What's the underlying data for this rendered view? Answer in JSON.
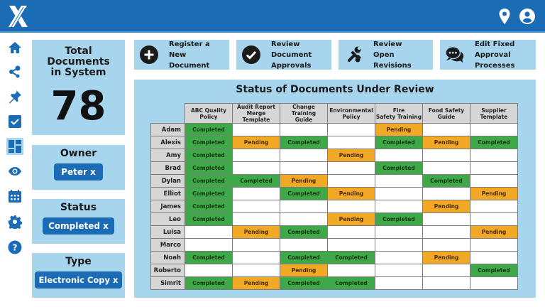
{
  "header": {
    "logo": "x-logo",
    "icons": [
      "location-pin-icon",
      "user-account-icon"
    ],
    "background": "#1b6cb4"
  },
  "sidebar": {
    "items": [
      {
        "name": "home",
        "icon": "home-icon"
      },
      {
        "name": "share",
        "icon": "share-icon"
      },
      {
        "name": "pin",
        "icon": "pin-icon"
      },
      {
        "name": "tasks",
        "icon": "checkbox-icon"
      },
      {
        "name": "dashboard",
        "icon": "dashboard-icon",
        "active": true
      },
      {
        "name": "view",
        "icon": "eye-icon"
      },
      {
        "name": "calendar",
        "icon": "calendar-icon"
      },
      {
        "name": "settings",
        "icon": "gear-icon"
      },
      {
        "name": "help",
        "icon": "help-icon"
      }
    ]
  },
  "stats": {
    "total_label_line1": "Total",
    "total_label_line2": "Documents",
    "total_label_line3": "in System",
    "total_value": "78"
  },
  "filters": {
    "owner": {
      "label": "Owner",
      "chip": "Peter x"
    },
    "status": {
      "label": "Status",
      "chip": "Completed x"
    },
    "type": {
      "label": "Type",
      "chip": "Electronic Copy x"
    }
  },
  "actions": [
    {
      "line1": "Register a",
      "line2": "New Document",
      "icon": "plus-circle-icon"
    },
    {
      "line1": "Review Document",
      "line2": "Approvals",
      "icon": "check-circle-icon"
    },
    {
      "line1": "Review",
      "line2": "Open Revisions",
      "icon": "tools-icon"
    },
    {
      "line1": "Edit Fixed Approval",
      "line2": "Processes",
      "icon": "chat-bubbles-icon"
    }
  ],
  "review_table": {
    "title": "Status of Documents Under Review",
    "columns": [
      {
        "line1": "ABC Quality",
        "line2": "Policy"
      },
      {
        "line1": "Audit Report",
        "line2": "Merge Template"
      },
      {
        "line1": "Change Training",
        "line2": "Guide"
      },
      {
        "line1": "Environmental",
        "line2": "Policy"
      },
      {
        "line1": "Fire",
        "line2": "Safety Training"
      },
      {
        "line1": "Food Safety",
        "line2": "Guide"
      },
      {
        "line1": "Supplier",
        "line2": "Template"
      }
    ],
    "rows": [
      {
        "name": "Adam",
        "cells": [
          "Completed",
          "",
          "",
          "",
          "Pending",
          "",
          ""
        ]
      },
      {
        "name": "Alexis",
        "cells": [
          "Completed",
          "Pending",
          "Completed",
          "",
          "Completed",
          "Pending",
          "Completed"
        ]
      },
      {
        "name": "Amy",
        "cells": [
          "Completed",
          "",
          "",
          "Pending",
          "",
          "",
          ""
        ]
      },
      {
        "name": "Brad",
        "cells": [
          "Completed",
          "",
          "",
          "",
          "Completed",
          "",
          ""
        ]
      },
      {
        "name": "Dylan",
        "cells": [
          "Completed",
          "Completed",
          "Pending",
          "",
          "",
          "Completed",
          ""
        ]
      },
      {
        "name": "Elliot",
        "cells": [
          "Completed",
          "",
          "Completed",
          "Pending",
          "",
          "",
          "Pending"
        ]
      },
      {
        "name": "James",
        "cells": [
          "Completed",
          "",
          "",
          "",
          "",
          "Pending",
          ""
        ]
      },
      {
        "name": "Leo",
        "cells": [
          "Completed",
          "",
          "",
          "Pending",
          "Completed",
          "",
          ""
        ]
      },
      {
        "name": "Luisa",
        "cells": [
          "",
          "Pending",
          "Completed",
          "",
          "",
          "",
          "Pending"
        ]
      },
      {
        "name": "Marco",
        "cells": [
          "",
          "",
          "",
          "",
          "",
          "",
          ""
        ]
      },
      {
        "name": "Noah",
        "cells": [
          "Completed",
          "",
          "Completed",
          "Completed",
          "",
          "Pending",
          ""
        ]
      },
      {
        "name": "Roberto",
        "cells": [
          "",
          "",
          "Pending",
          "",
          "",
          "",
          "Completed"
        ]
      },
      {
        "name": "Simrit",
        "cells": [
          "Completed",
          "Pending",
          "Completed",
          "Completed",
          "",
          "",
          ""
        ]
      }
    ],
    "status_colors": {
      "Completed": "#3fa848",
      "Pending": "#f1a825"
    }
  }
}
